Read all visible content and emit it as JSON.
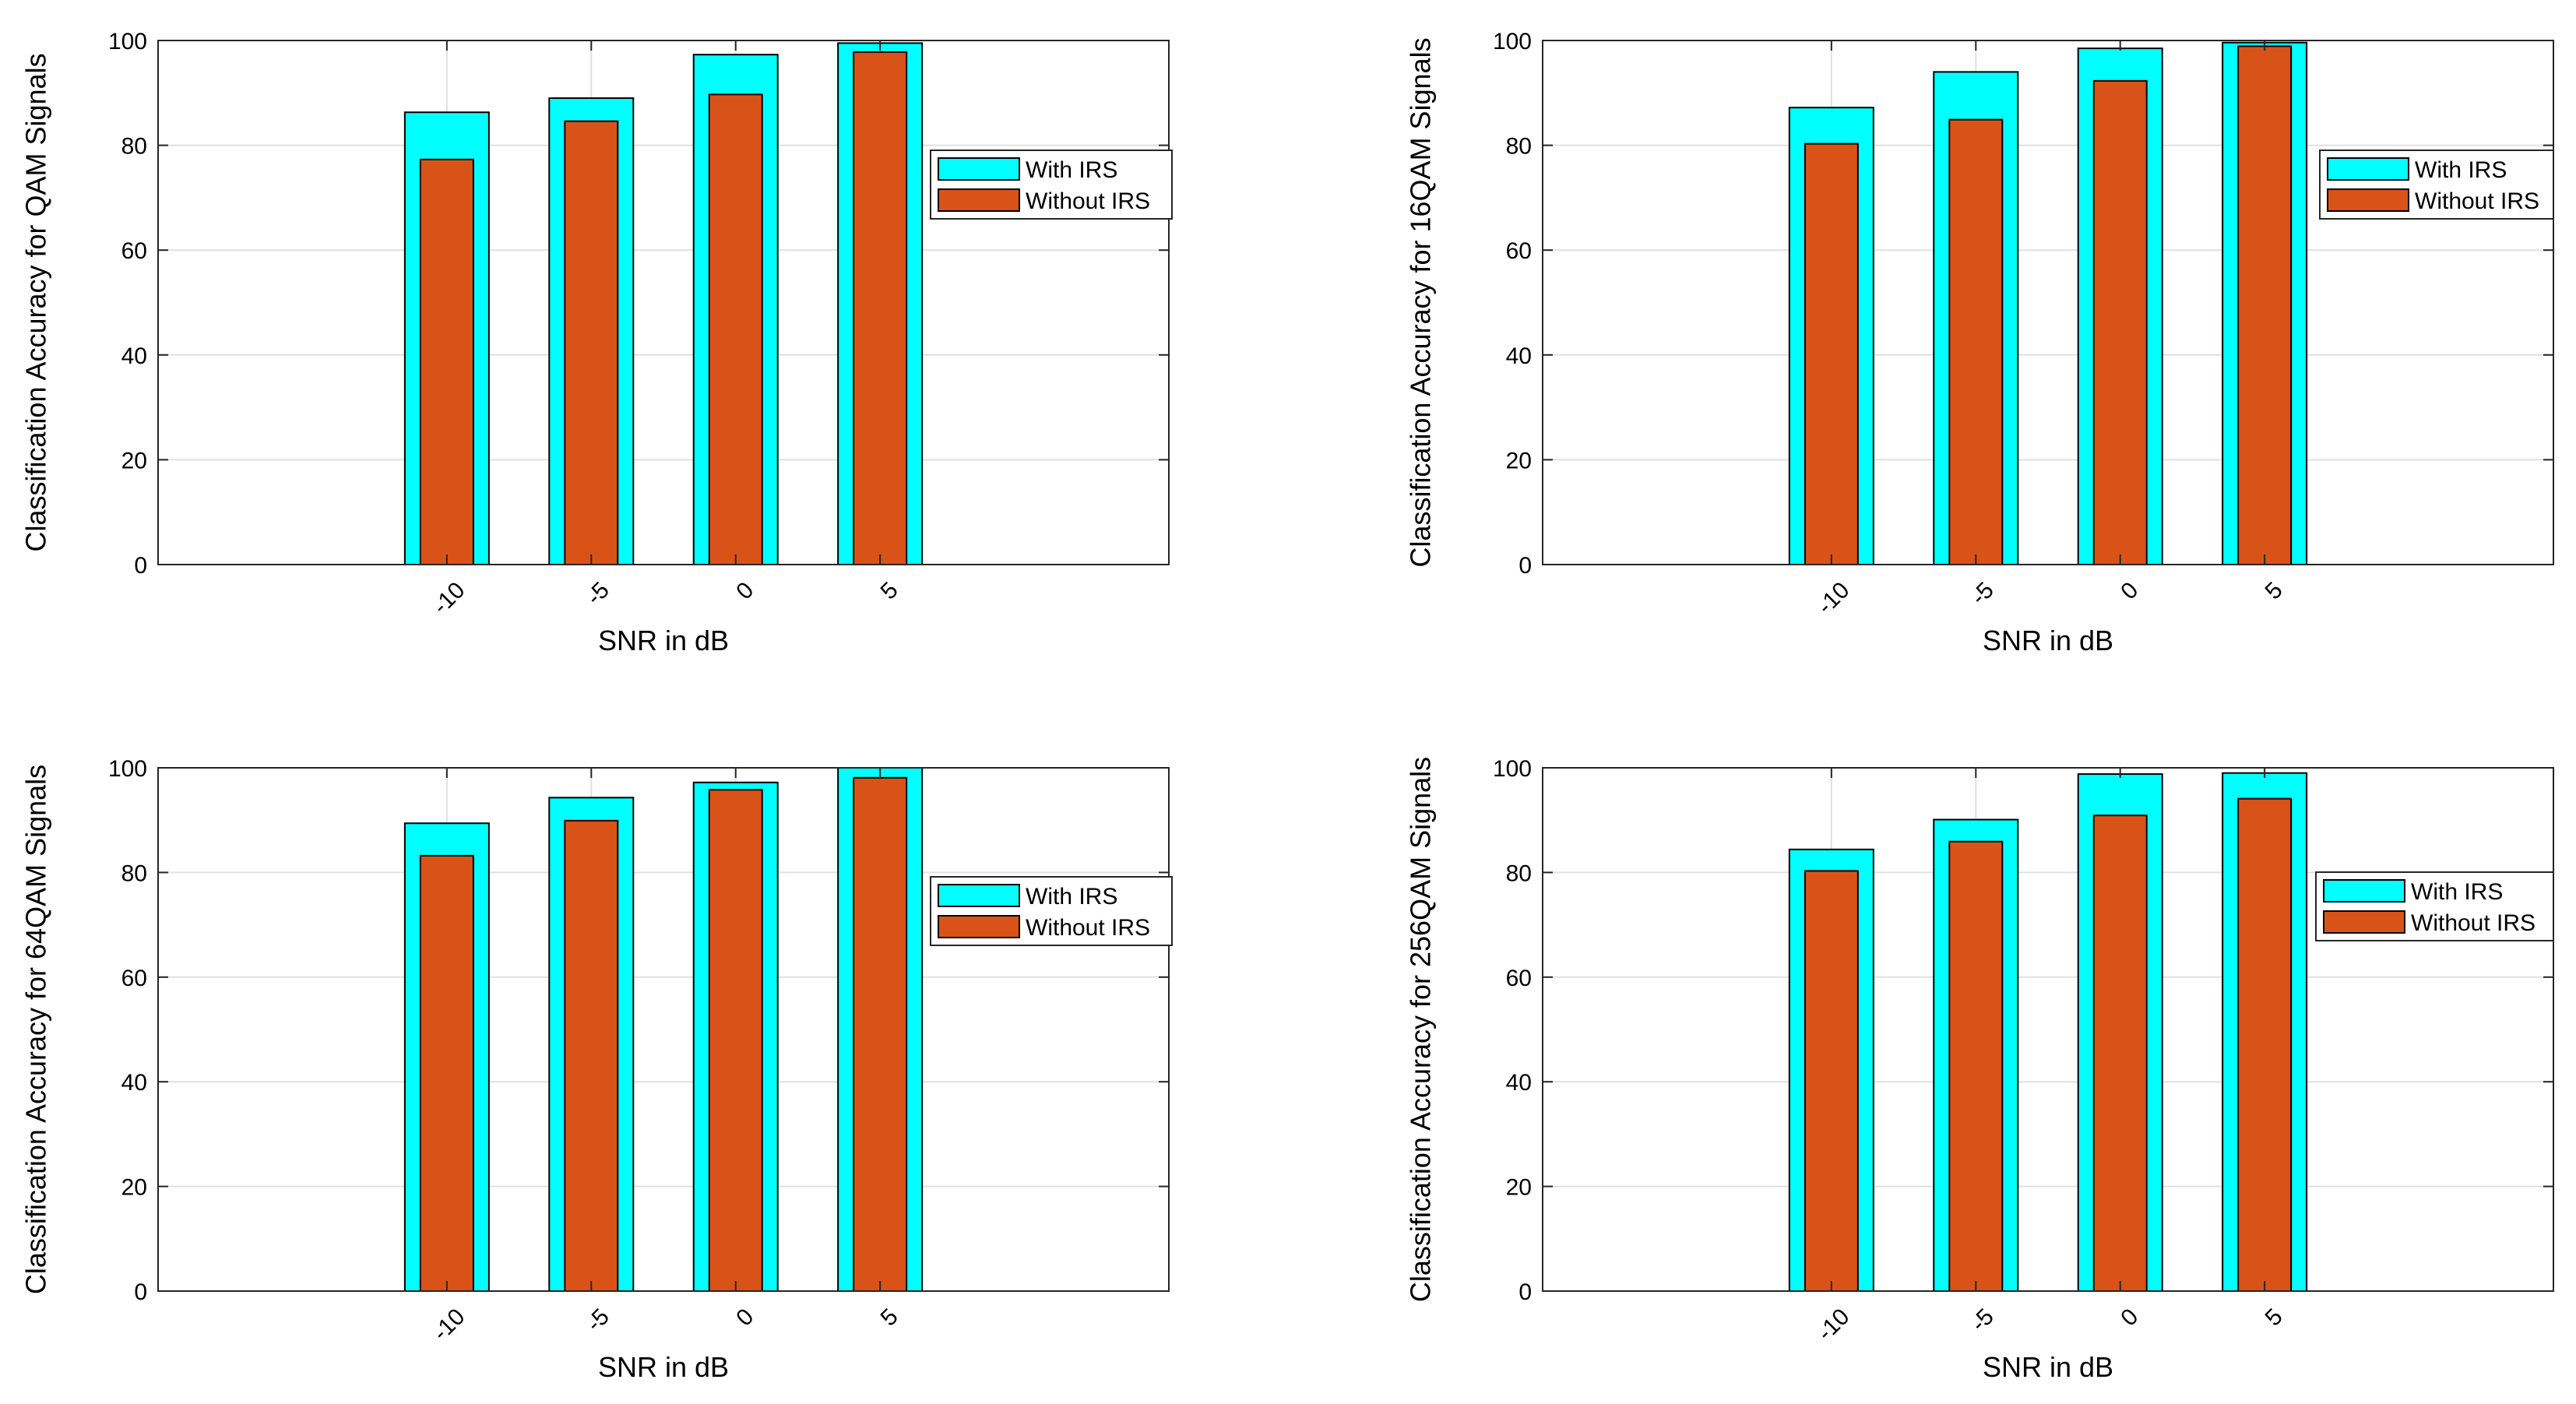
{
  "colors": {
    "with_irs": "#00FFFF",
    "without_irs": "#D95319",
    "grid": "#E0E0E0",
    "axes": "#262626",
    "bar_edge": "#000000"
  },
  "chart_data": [
    {
      "type": "bar",
      "title": "",
      "xlabel": "SNR in dB",
      "ylabel": "Classification Accuracy for QAM Signals",
      "categories": [
        "-10",
        "-5",
        "0",
        "5"
      ],
      "yticks": [
        "0",
        "20",
        "40",
        "60",
        "80",
        "100"
      ],
      "ylim": [
        0,
        100
      ],
      "xlim": [
        -20,
        15
      ],
      "grid": true,
      "legend_position": "right",
      "series": [
        {
          "name": "With IRS",
          "values": [
            86.3,
            89.0,
            97.3,
            99.5
          ]
        },
        {
          "name": "Without IRS",
          "values": [
            77.3,
            84.6,
            89.7,
            97.8
          ]
        }
      ]
    },
    {
      "type": "bar",
      "title": "",
      "xlabel": "SNR in dB",
      "ylabel": "Classification Accuracy for 16QAM Signals",
      "categories": [
        "-10",
        "-5",
        "0",
        "5"
      ],
      "yticks": [
        "0",
        "20",
        "40",
        "60",
        "80",
        "100"
      ],
      "ylim": [
        0,
        100
      ],
      "xlim": [
        -20,
        15
      ],
      "grid": true,
      "legend_position": "right",
      "series": [
        {
          "name": "With IRS",
          "values": [
            87.2,
            94.0,
            98.5,
            99.6
          ]
        },
        {
          "name": "Without IRS",
          "values": [
            80.3,
            84.9,
            92.3,
            98.9
          ]
        }
      ]
    },
    {
      "type": "bar",
      "title": "",
      "xlabel": "SNR in dB",
      "ylabel": "Classification Accuracy for 64QAM Signals",
      "categories": [
        "-10",
        "-5",
        "0",
        "5"
      ],
      "yticks": [
        "0",
        "20",
        "40",
        "60",
        "80",
        "100"
      ],
      "ylim": [
        0,
        100
      ],
      "xlim": [
        -20,
        15
      ],
      "grid": true,
      "legend_position": "right",
      "series": [
        {
          "name": "With IRS",
          "values": [
            89.4,
            94.3,
            97.2,
            100.0
          ]
        },
        {
          "name": "Without IRS",
          "values": [
            83.2,
            89.9,
            95.8,
            98.1
          ]
        }
      ]
    },
    {
      "type": "bar",
      "title": "",
      "xlabel": "SNR in dB",
      "ylabel": "Classification Accuracy for 256QAM Signals",
      "categories": [
        "-10",
        "-5",
        "0",
        "5"
      ],
      "yticks": [
        "0",
        "20",
        "40",
        "60",
        "80",
        "100"
      ],
      "ylim": [
        0,
        100
      ],
      "xlim": [
        -20,
        15
      ],
      "grid": true,
      "legend_position": "right",
      "series": [
        {
          "name": "With IRS",
          "values": [
            84.4,
            90.1,
            98.8,
            99.0
          ]
        },
        {
          "name": "Without IRS",
          "values": [
            80.3,
            85.9,
            90.9,
            94.1
          ]
        }
      ]
    }
  ]
}
